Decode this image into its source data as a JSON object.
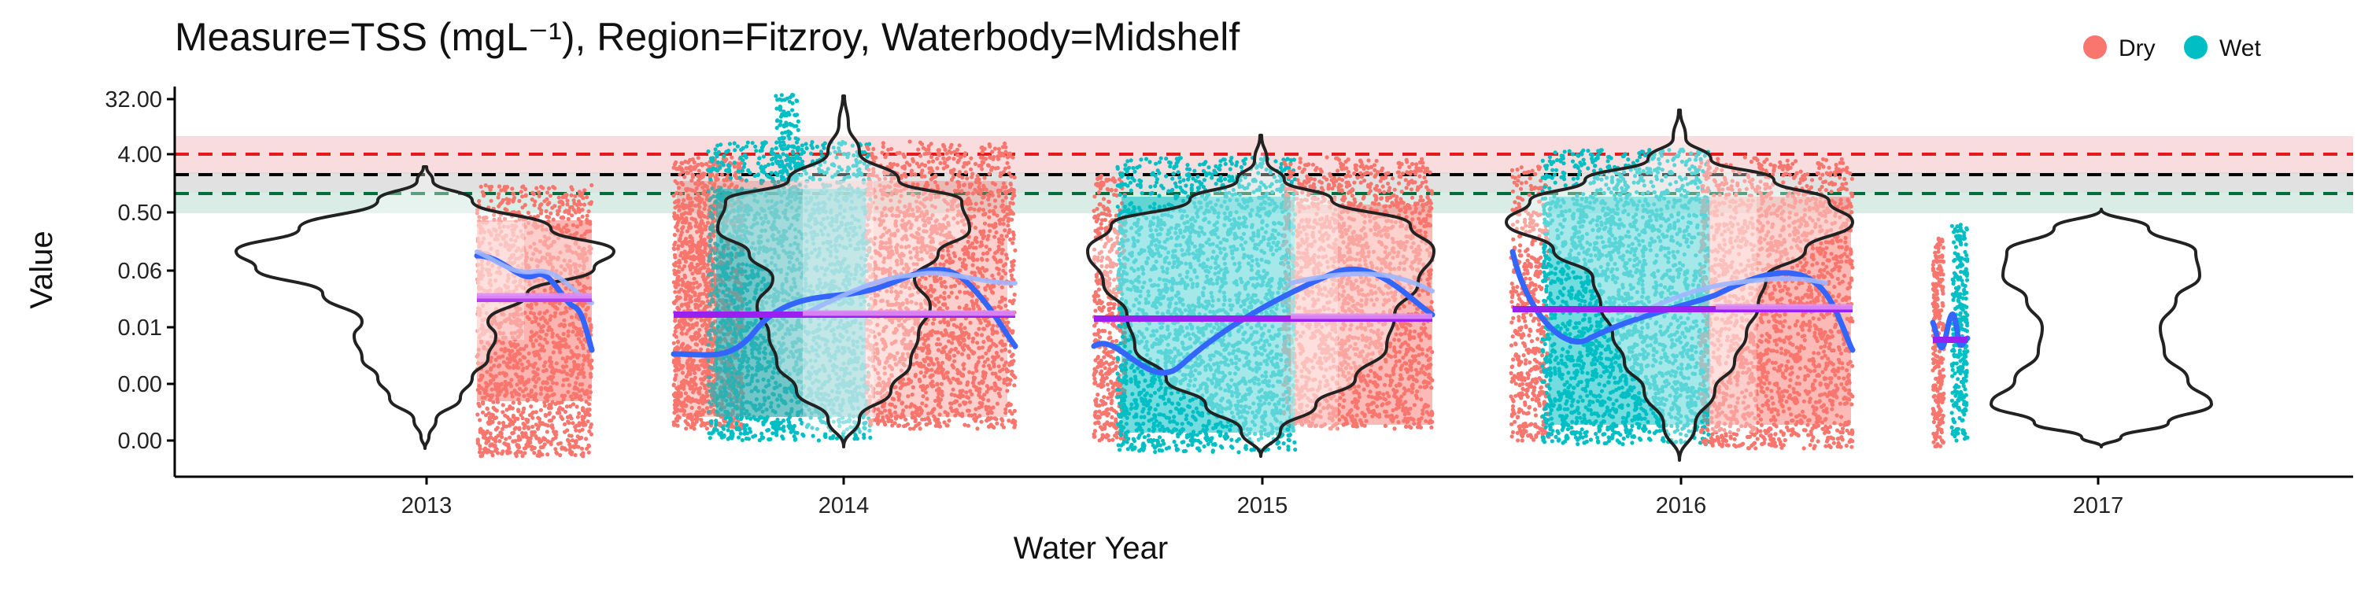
{
  "chart_data": {
    "type": "violin",
    "title": "Measure=TSS (mgL⁻¹), Region=Fitzroy, Waterbody=Midshelf",
    "xlabel": "Water Year",
    "ylabel": "Value",
    "x_ticks": [
      "2013",
      "2014",
      "2015",
      "2016",
      "2017"
    ],
    "y_ticks": [
      "32.00",
      "4.00",
      "0.50",
      "0.06",
      "0.01",
      "0.00",
      "0.00"
    ],
    "y_scale": "log",
    "legend": {
      "position": "top-right",
      "items": [
        {
          "label": "Dry",
          "color": "#F8766D"
        },
        {
          "label": "Wet",
          "color": "#00BFC4"
        }
      ]
    },
    "guidelines": [
      {
        "color": "#E41A1C",
        "value": 4.0,
        "style": "dashed"
      },
      {
        "color": "#000000",
        "value": 2.0,
        "style": "dashed"
      },
      {
        "color": "#006D3C",
        "value": 1.0,
        "style": "dashed"
      }
    ],
    "violins": [
      {
        "year": "2013",
        "median_log2": -5.2
      },
      {
        "year": "2014",
        "median_log2": -6.0
      },
      {
        "year": "2015",
        "median_log2": -6.2
      },
      {
        "year": "2016",
        "median_log2": -5.4
      },
      {
        "year": "2017",
        "median_log2": -7.5
      }
    ],
    "annual_means": [
      {
        "year": "2013",
        "value_log2": -4.8
      },
      {
        "year": "2014",
        "value_log2": -6.2
      },
      {
        "year": "2015",
        "value_log2": -6.4
      },
      {
        "year": "2016",
        "value_log2": -6.0
      },
      {
        "year": "2017",
        "value_log2": -9.0
      }
    ]
  }
}
